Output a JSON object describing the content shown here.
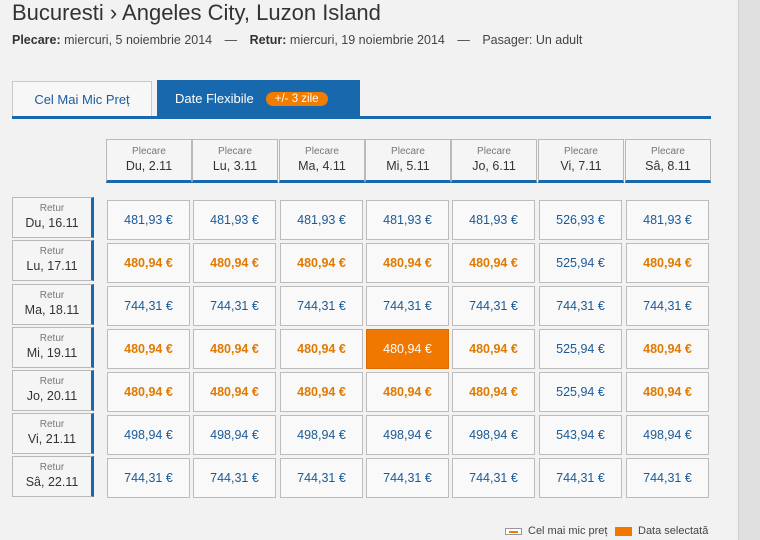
{
  "header": {
    "route": "Bucuresti › Angeles City, Luzon Island",
    "departure_label": "Plecare:",
    "departure_value": "miercuri, 5 noiembrie 2014",
    "separator": "—",
    "return_label": "Retur:",
    "return_value": "miercuri, 19 noiembrie 2014",
    "passenger_text": "Pasager: Un adult"
  },
  "tabs": {
    "cheapest": "Cel Mai Mic Preț",
    "flexible": "Date Flexibile",
    "flexible_badge": "+/- 3 zile"
  },
  "grid": {
    "columns": [
      {
        "label": "Plecare",
        "date": "Du, 2.11"
      },
      {
        "label": "Plecare",
        "date": "Lu, 3.11"
      },
      {
        "label": "Plecare",
        "date": "Ma, 4.11"
      },
      {
        "label": "Plecare",
        "date": "Mi, 5.11"
      },
      {
        "label": "Plecare",
        "date": "Jo, 6.11"
      },
      {
        "label": "Plecare",
        "date": "Vi, 7.11"
      },
      {
        "label": "Plecare",
        "date": "Sâ, 8.11"
      }
    ],
    "rows": [
      {
        "label": "Retur",
        "date": "Du, 16.11",
        "prices": [
          "481,93 €",
          "481,93 €",
          "481,93 €",
          "481,93 €",
          "481,93 €",
          "526,93 €",
          "481,93 €"
        ],
        "cheapest": [
          false,
          false,
          false,
          false,
          false,
          false,
          false
        ]
      },
      {
        "label": "Retur",
        "date": "Lu, 17.11",
        "prices": [
          "480,94 €",
          "480,94 €",
          "480,94 €",
          "480,94 €",
          "480,94 €",
          "525,94 €",
          "480,94 €"
        ],
        "cheapest": [
          true,
          true,
          true,
          true,
          true,
          false,
          true
        ]
      },
      {
        "label": "Retur",
        "date": "Ma, 18.11",
        "prices": [
          "744,31 €",
          "744,31 €",
          "744,31 €",
          "744,31 €",
          "744,31 €",
          "744,31 €",
          "744,31 €"
        ],
        "cheapest": [
          false,
          false,
          false,
          false,
          false,
          false,
          false
        ]
      },
      {
        "label": "Retur",
        "date": "Mi, 19.11",
        "prices": [
          "480,94 €",
          "480,94 €",
          "480,94 €",
          "480,94 €",
          "480,94 €",
          "525,94 €",
          "480,94 €"
        ],
        "cheapest": [
          true,
          true,
          true,
          true,
          true,
          false,
          true
        ]
      },
      {
        "label": "Retur",
        "date": "Jo, 20.11",
        "prices": [
          "480,94 €",
          "480,94 €",
          "480,94 €",
          "480,94 €",
          "480,94 €",
          "525,94 €",
          "480,94 €"
        ],
        "cheapest": [
          true,
          true,
          true,
          true,
          true,
          false,
          true
        ]
      },
      {
        "label": "Retur",
        "date": "Vi, 21.11",
        "prices": [
          "498,94 €",
          "498,94 €",
          "498,94 €",
          "498,94 €",
          "498,94 €",
          "543,94 €",
          "498,94 €"
        ],
        "cheapest": [
          false,
          false,
          false,
          false,
          false,
          false,
          false
        ]
      },
      {
        "label": "Retur",
        "date": "Sâ, 22.11",
        "prices": [
          "744,31 €",
          "744,31 €",
          "744,31 €",
          "744,31 €",
          "744,31 €",
          "744,31 €",
          "744,31 €"
        ],
        "cheapest": [
          false,
          false,
          false,
          false,
          false,
          false,
          false
        ]
      }
    ],
    "selected": {
      "row": 3,
      "col": 3
    }
  },
  "legend": {
    "cheapest_label": "Cel mai mic preț",
    "selected_label": "Data selectată"
  },
  "colors": {
    "accent_blue": "#1868ad",
    "cheap_orange": "#e07a00",
    "selected_orange": "#f07800",
    "price_blue": "#1b5a96"
  }
}
